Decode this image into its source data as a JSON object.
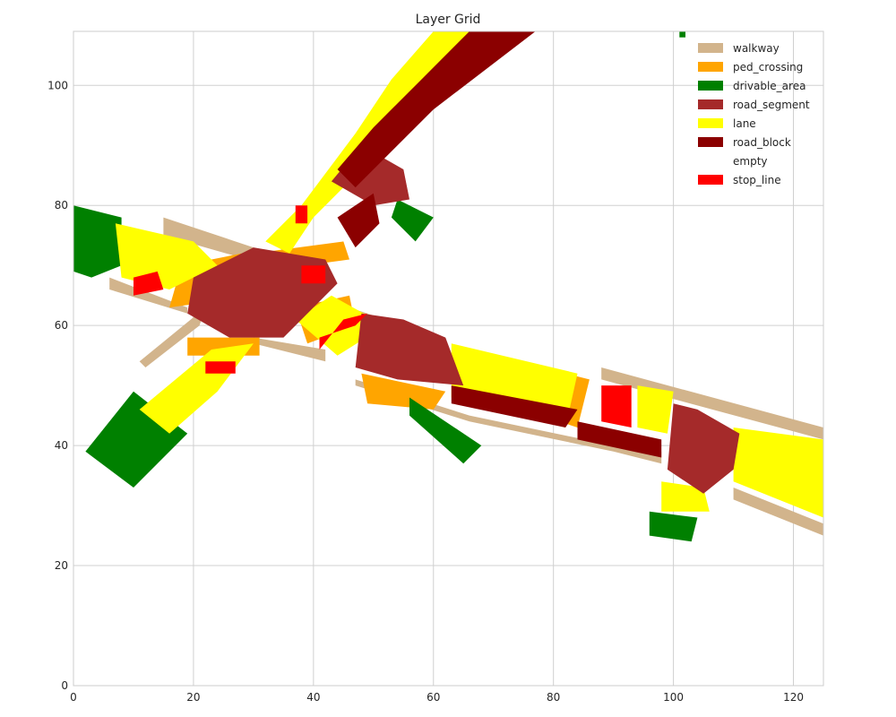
{
  "chart_data": {
    "type": "heatmap",
    "title": "Layer Grid",
    "xlabel": "",
    "ylabel": "",
    "xlim": [
      0,
      125
    ],
    "ylim": [
      0,
      109
    ],
    "x_ticks": [
      0,
      20,
      40,
      60,
      80,
      100,
      120
    ],
    "y_ticks": [
      0,
      20,
      40,
      60,
      80,
      100
    ],
    "grid": true,
    "legend_position": "top-right",
    "legend": [
      {
        "name": "walkway",
        "color": "#d2b48c"
      },
      {
        "name": "ped_crossing",
        "color": "#ffa500"
      },
      {
        "name": "drivable_area",
        "color": "#008000"
      },
      {
        "name": "road_segment",
        "color": "#a52a2a"
      },
      {
        "name": "lane",
        "color": "#ffff00"
      },
      {
        "name": "road_block",
        "color": "#8b0000"
      },
      {
        "name": "empty",
        "color": "#ffffff"
      },
      {
        "name": "stop_line",
        "color": "#ff0000"
      }
    ],
    "regions": [
      {
        "layer": "walkway",
        "polygon": [
          [
            61,
            109
          ],
          [
            65,
            109
          ],
          [
            48,
            88
          ],
          [
            40,
            78
          ],
          [
            34,
            72
          ],
          [
            31,
            70
          ],
          [
            36,
            72
          ],
          [
            41,
            80
          ],
          [
            45,
            86
          ],
          [
            51,
            95
          ],
          [
            57,
            103
          ]
        ]
      },
      {
        "layer": "walkway",
        "polygon": [
          [
            15,
            78
          ],
          [
            30,
            73
          ],
          [
            29,
            71
          ],
          [
            15,
            75
          ]
        ]
      },
      {
        "layer": "walkway",
        "polygon": [
          [
            6,
            66
          ],
          [
            19,
            62
          ],
          [
            19,
            63
          ],
          [
            6,
            68
          ]
        ]
      },
      {
        "layer": "walkway",
        "polygon": [
          [
            11,
            54
          ],
          [
            22,
            63
          ],
          [
            21,
            60
          ],
          [
            12,
            53
          ]
        ]
      },
      {
        "layer": "walkway",
        "polygon": [
          [
            18,
            47
          ],
          [
            31,
            58
          ],
          [
            28,
            56
          ],
          [
            20,
            47
          ]
        ]
      },
      {
        "layer": "walkway",
        "polygon": [
          [
            30,
            57
          ],
          [
            42,
            54
          ],
          [
            42,
            56
          ],
          [
            30,
            58
          ]
        ]
      },
      {
        "layer": "walkway",
        "polygon": [
          [
            47,
            51
          ],
          [
            66,
            45
          ],
          [
            90,
            40
          ],
          [
            98,
            39
          ],
          [
            98,
            37
          ],
          [
            90,
            39
          ],
          [
            66,
            44
          ],
          [
            47,
            50
          ]
        ]
      },
      {
        "layer": "walkway",
        "polygon": [
          [
            88,
            53
          ],
          [
            125,
            43
          ],
          [
            125,
            41
          ],
          [
            88,
            51
          ]
        ]
      },
      {
        "layer": "walkway",
        "polygon": [
          [
            110,
            33
          ],
          [
            125,
            27
          ],
          [
            125,
            25
          ],
          [
            110,
            31
          ]
        ]
      },
      {
        "layer": "walkway",
        "polygon": [
          [
            43,
            64
          ],
          [
            52,
            61
          ],
          [
            52,
            60
          ],
          [
            43,
            63
          ]
        ]
      },
      {
        "layer": "ped_crossing",
        "polygon": [
          [
            30,
            72
          ],
          [
            45,
            74
          ],
          [
            46,
            71
          ],
          [
            31,
            69
          ]
        ]
      },
      {
        "layer": "ped_crossing",
        "polygon": [
          [
            18,
            70
          ],
          [
            28,
            72
          ],
          [
            23,
            64
          ],
          [
            16,
            63
          ]
        ]
      },
      {
        "layer": "ped_crossing",
        "polygon": [
          [
            19,
            58
          ],
          [
            31,
            58
          ],
          [
            31,
            55
          ],
          [
            19,
            55
          ]
        ]
      },
      {
        "layer": "ped_crossing",
        "polygon": [
          [
            37,
            63
          ],
          [
            46,
            65
          ],
          [
            47,
            60
          ],
          [
            39,
            57
          ]
        ]
      },
      {
        "layer": "ped_crossing",
        "polygon": [
          [
            48,
            52
          ],
          [
            62,
            49
          ],
          [
            60,
            46
          ],
          [
            49,
            47
          ]
        ]
      },
      {
        "layer": "ped_crossing",
        "polygon": [
          [
            82,
            52
          ],
          [
            86,
            51
          ],
          [
            84,
            43
          ],
          [
            81,
            44
          ]
        ]
      },
      {
        "layer": "drivable_area",
        "polygon": [
          [
            0,
            80
          ],
          [
            8,
            78
          ],
          [
            8,
            70
          ],
          [
            3,
            68
          ],
          [
            0,
            69
          ]
        ]
      },
      {
        "layer": "drivable_area",
        "polygon": [
          [
            2,
            39
          ],
          [
            10,
            49
          ],
          [
            19,
            42
          ],
          [
            10,
            33
          ]
        ]
      },
      {
        "layer": "drivable_area",
        "polygon": [
          [
            54,
            81
          ],
          [
            60,
            78
          ],
          [
            57,
            74
          ],
          [
            53,
            78
          ]
        ]
      },
      {
        "layer": "drivable_area",
        "polygon": [
          [
            56,
            48
          ],
          [
            68,
            40
          ],
          [
            65,
            37
          ],
          [
            56,
            45
          ]
        ]
      },
      {
        "layer": "drivable_area",
        "polygon": [
          [
            96,
            29
          ],
          [
            104,
            28
          ],
          [
            103,
            24
          ],
          [
            96,
            25
          ]
        ]
      },
      {
        "layer": "drivable_area",
        "polygon": [
          [
            101,
            109
          ],
          [
            102,
            109
          ],
          [
            102,
            108
          ],
          [
            101,
            108
          ]
        ]
      },
      {
        "layer": "lane",
        "polygon": [
          [
            60,
            109
          ],
          [
            70,
            109
          ],
          [
            48,
            86
          ],
          [
            40,
            78
          ],
          [
            36,
            72
          ],
          [
            32,
            74
          ],
          [
            38,
            80
          ],
          [
            47,
            92
          ],
          [
            53,
            101
          ]
        ]
      },
      {
        "layer": "lane",
        "polygon": [
          [
            7,
            77
          ],
          [
            20,
            74
          ],
          [
            24,
            70
          ],
          [
            16,
            66
          ],
          [
            8,
            68
          ]
        ]
      },
      {
        "layer": "lane",
        "polygon": [
          [
            11,
            46
          ],
          [
            23,
            56
          ],
          [
            30,
            57
          ],
          [
            24,
            49
          ],
          [
            16,
            42
          ]
        ]
      },
      {
        "layer": "lane",
        "polygon": [
          [
            37,
            61
          ],
          [
            43,
            65
          ],
          [
            52,
            60
          ],
          [
            44,
            55
          ]
        ]
      },
      {
        "layer": "lane",
        "polygon": [
          [
            63,
            57
          ],
          [
            84,
            52
          ],
          [
            82,
            43
          ],
          [
            63,
            48
          ]
        ]
      },
      {
        "layer": "lane",
        "polygon": [
          [
            94,
            50
          ],
          [
            100,
            49
          ],
          [
            99,
            42
          ],
          [
            94,
            43
          ]
        ]
      },
      {
        "layer": "lane",
        "polygon": [
          [
            110,
            43
          ],
          [
            125,
            41
          ],
          [
            125,
            28
          ],
          [
            110,
            34
          ]
        ]
      },
      {
        "layer": "lane",
        "polygon": [
          [
            98,
            34
          ],
          [
            105,
            33
          ],
          [
            106,
            29
          ],
          [
            98,
            29
          ]
        ]
      },
      {
        "layer": "road_segment",
        "polygon": [
          [
            48,
            90
          ],
          [
            55,
            86
          ],
          [
            56,
            81
          ],
          [
            50,
            80
          ],
          [
            43,
            84
          ]
        ]
      },
      {
        "layer": "road_segment",
        "polygon": [
          [
            20,
            68
          ],
          [
            30,
            73
          ],
          [
            42,
            71
          ],
          [
            44,
            67
          ],
          [
            35,
            58
          ],
          [
            26,
            58
          ],
          [
            19,
            62
          ]
        ]
      },
      {
        "layer": "road_segment",
        "polygon": [
          [
            48,
            62
          ],
          [
            55,
            61
          ],
          [
            62,
            58
          ],
          [
            65,
            50
          ],
          [
            54,
            51
          ],
          [
            47,
            53
          ]
        ]
      },
      {
        "layer": "road_segment",
        "polygon": [
          [
            100,
            47
          ],
          [
            104,
            46
          ],
          [
            111,
            42
          ],
          [
            110,
            36
          ],
          [
            105,
            32
          ],
          [
            99,
            36
          ]
        ]
      },
      {
        "layer": "road_block",
        "polygon": [
          [
            66,
            109
          ],
          [
            77,
            109
          ],
          [
            60,
            96
          ],
          [
            52,
            88
          ],
          [
            47,
            83
          ],
          [
            44,
            86
          ],
          [
            50,
            93
          ],
          [
            58,
            101
          ]
        ]
      },
      {
        "layer": "road_block",
        "polygon": [
          [
            44,
            78
          ],
          [
            50,
            82
          ],
          [
            51,
            77
          ],
          [
            47,
            73
          ]
        ]
      },
      {
        "layer": "road_block",
        "polygon": [
          [
            63,
            50
          ],
          [
            84,
            46
          ],
          [
            82,
            43
          ],
          [
            63,
            47
          ]
        ]
      },
      {
        "layer": "road_block",
        "polygon": [
          [
            84,
            44
          ],
          [
            98,
            41
          ],
          [
            98,
            38
          ],
          [
            84,
            41
          ]
        ]
      },
      {
        "layer": "stop_line",
        "polygon": [
          [
            37,
            80
          ],
          [
            39,
            80
          ],
          [
            39,
            77
          ],
          [
            37,
            77
          ]
        ]
      },
      {
        "layer": "stop_line",
        "polygon": [
          [
            38,
            70
          ],
          [
            42,
            70
          ],
          [
            42,
            67
          ],
          [
            38,
            67
          ]
        ]
      },
      {
        "layer": "stop_line",
        "polygon": [
          [
            10,
            68
          ],
          [
            14,
            69
          ],
          [
            15,
            66
          ],
          [
            10,
            65
          ]
        ]
      },
      {
        "layer": "stop_line",
        "polygon": [
          [
            22,
            54
          ],
          [
            27,
            54
          ],
          [
            27,
            52
          ],
          [
            22,
            52
          ]
        ]
      },
      {
        "layer": "stop_line",
        "polygon": [
          [
            41,
            58
          ],
          [
            47,
            60
          ],
          [
            49,
            62
          ],
          [
            45,
            61
          ],
          [
            41,
            56
          ]
        ]
      },
      {
        "layer": "stop_line",
        "polygon": [
          [
            88,
            50
          ],
          [
            93,
            50
          ],
          [
            93,
            43
          ],
          [
            88,
            44
          ]
        ]
      }
    ]
  }
}
